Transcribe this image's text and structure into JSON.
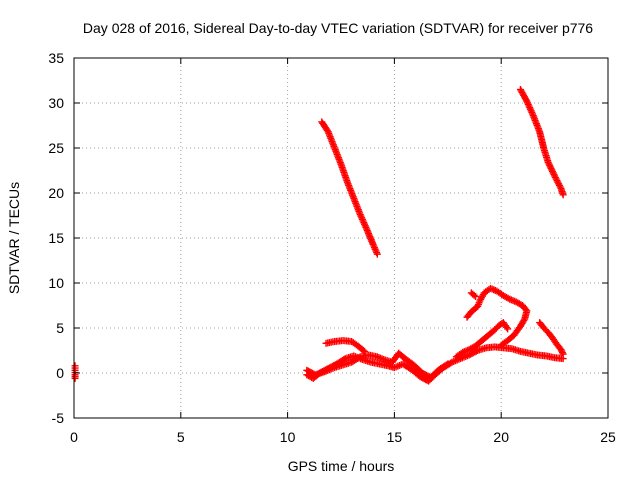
{
  "chart_data": {
    "type": "scatter",
    "title": "Day 028 of 2016, Sidereal Day-to-day VTEC variation (SDTVAR) for receiver p776",
    "xlabel": "GPS time / hours",
    "ylabel": "SDTVAR / TECUs",
    "xlim": [
      0,
      25
    ],
    "ylim": [
      -5,
      35
    ],
    "xticks": [
      0,
      5,
      10,
      15,
      20,
      25
    ],
    "yticks": [
      -5,
      0,
      5,
      10,
      15,
      20,
      25,
      30,
      35
    ],
    "grid": true,
    "marker": "plus",
    "color": "#ff0000",
    "series": [
      {
        "points": [
          [
            0.05,
            0.8
          ],
          [
            0.05,
            0.3
          ],
          [
            0.05,
            -0.2
          ],
          [
            0.05,
            -0.6
          ]
        ]
      },
      {
        "points": [
          [
            11.6,
            27.9
          ],
          [
            11.9,
            26.8
          ],
          [
            12.2,
            25.0
          ],
          [
            12.5,
            23.2
          ],
          [
            12.8,
            21.2
          ],
          [
            13.1,
            19.4
          ],
          [
            13.4,
            17.6
          ],
          [
            13.7,
            16.0
          ],
          [
            14.0,
            14.3
          ],
          [
            14.2,
            13.2
          ]
        ]
      },
      {
        "points": [
          [
            20.9,
            31.5
          ],
          [
            21.2,
            30.2
          ],
          [
            21.5,
            28.6
          ],
          [
            21.8,
            26.8
          ],
          [
            22.0,
            24.9
          ],
          [
            22.2,
            23.4
          ],
          [
            22.5,
            21.9
          ],
          [
            22.8,
            20.5
          ],
          [
            22.9,
            19.8
          ]
        ]
      },
      {
        "points": [
          [
            10.9,
            -0.2
          ],
          [
            11.2,
            -0.6
          ],
          [
            11.5,
            0.0
          ],
          [
            11.9,
            0.5
          ],
          [
            12.3,
            1.0
          ],
          [
            12.7,
            1.6
          ],
          [
            13.1,
            1.9
          ],
          [
            13.5,
            1.5
          ],
          [
            13.9,
            1.2
          ],
          [
            14.3,
            1.0
          ],
          [
            14.7,
            0.8
          ],
          [
            15.0,
            0.6
          ],
          [
            15.4,
            1.0
          ],
          [
            15.8,
            0.4
          ],
          [
            16.2,
            -0.4
          ],
          [
            16.6,
            -0.9
          ],
          [
            16.9,
            -0.2
          ],
          [
            17.3,
            0.6
          ],
          [
            17.7,
            1.2
          ],
          [
            18.1,
            1.6
          ],
          [
            18.5,
            2.0
          ],
          [
            18.9,
            2.5
          ],
          [
            19.3,
            2.8
          ],
          [
            19.7,
            2.9
          ],
          [
            20.1,
            2.8
          ],
          [
            20.5,
            2.7
          ],
          [
            20.9,
            2.4
          ],
          [
            21.3,
            2.2
          ],
          [
            21.7,
            2.0
          ],
          [
            22.1,
            1.9
          ],
          [
            22.5,
            1.7
          ],
          [
            22.9,
            1.6
          ]
        ]
      },
      {
        "points": [
          [
            10.9,
            0.3
          ],
          [
            11.3,
            -0.2
          ],
          [
            11.8,
            0.2
          ],
          [
            12.2,
            0.6
          ],
          [
            12.6,
            0.9
          ],
          [
            13.0,
            1.2
          ],
          [
            13.4,
            1.8
          ],
          [
            13.8,
            2.0
          ],
          [
            14.2,
            1.8
          ],
          [
            14.5,
            1.5
          ],
          [
            14.9,
            1.2
          ],
          [
            15.2,
            2.2
          ],
          [
            15.5,
            1.6
          ],
          [
            15.9,
            0.9
          ],
          [
            16.3,
            0.0
          ],
          [
            16.7,
            -0.5
          ],
          [
            17.1,
            0.4
          ],
          [
            17.5,
            1.0
          ]
        ]
      },
      {
        "points": [
          [
            11.8,
            3.3
          ],
          [
            12.2,
            3.5
          ],
          [
            12.6,
            3.6
          ],
          [
            13.0,
            3.5
          ],
          [
            13.3,
            3.0
          ],
          [
            13.6,
            2.4
          ]
        ]
      },
      {
        "points": [
          [
            17.9,
            1.8
          ],
          [
            18.2,
            2.3
          ],
          [
            18.5,
            2.6
          ],
          [
            18.8,
            3.0
          ],
          [
            19.1,
            3.6
          ],
          [
            19.4,
            4.2
          ],
          [
            19.7,
            4.8
          ],
          [
            19.9,
            5.3
          ],
          [
            20.1,
            5.6
          ],
          [
            20.3,
            4.9
          ]
        ]
      },
      {
        "points": [
          [
            18.4,
            6.2
          ],
          [
            18.6,
            6.8
          ],
          [
            18.9,
            7.4
          ],
          [
            19.0,
            8.0
          ],
          [
            19.2,
            8.9
          ],
          [
            19.5,
            9.4
          ],
          [
            19.8,
            9.1
          ],
          [
            20.1,
            8.6
          ],
          [
            20.4,
            8.2
          ],
          [
            20.7,
            7.9
          ],
          [
            21.0,
            7.5
          ],
          [
            21.2,
            6.9
          ],
          [
            21.1,
            6.0
          ],
          [
            20.9,
            5.2
          ],
          [
            20.6,
            4.2
          ],
          [
            20.3,
            3.6
          ],
          [
            20.0,
            3.1
          ]
        ]
      },
      {
        "points": [
          [
            21.8,
            5.6
          ],
          [
            22.0,
            5.0
          ],
          [
            22.2,
            4.5
          ],
          [
            22.4,
            3.9
          ],
          [
            22.6,
            3.2
          ],
          [
            22.8,
            2.6
          ],
          [
            22.9,
            2.1
          ]
        ]
      },
      {
        "points": [
          [
            18.6,
            8.9
          ],
          [
            18.8,
            8.5
          ]
        ]
      }
    ]
  }
}
